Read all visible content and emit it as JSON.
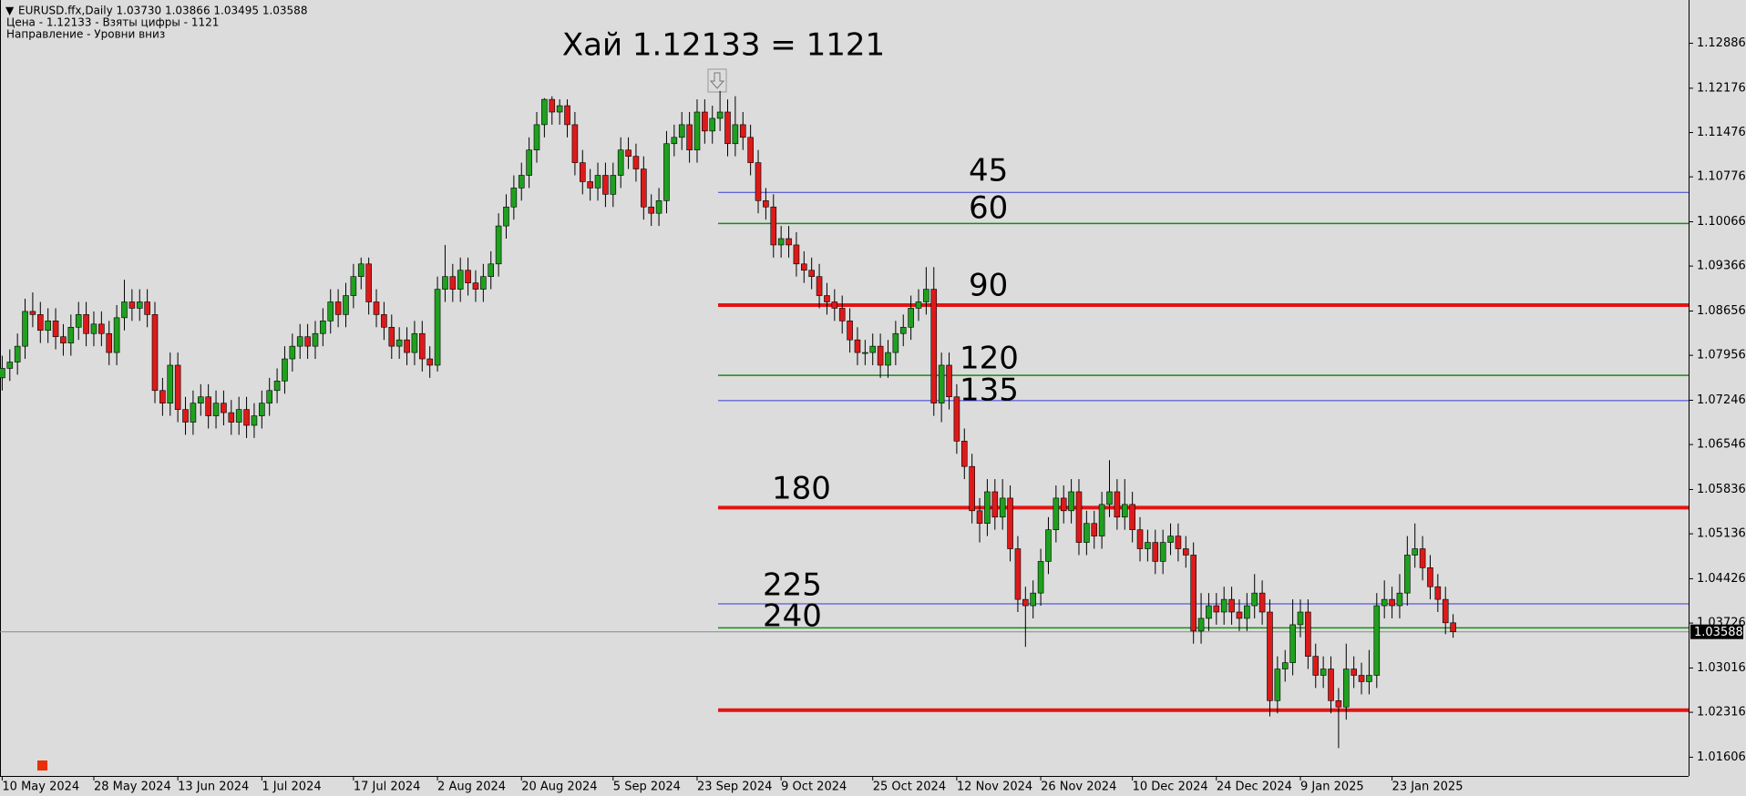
{
  "chart_data": {
    "type": "candlestick",
    "title": "Хай 1.12133 = 1121",
    "info_lines": [
      "EURUSD.ffx,Daily  1.03730 1.03866 1.03495 1.03588",
      "Цена - 1.12133 - Взяты цифры - 1121",
      "Направление - Уровни вниз"
    ],
    "up_color": "#1fa01f",
    "down_color": "#dd1a1a",
    "ylim": [
      1.0131,
      1.1357
    ],
    "yticks": [
      1.12886,
      1.12176,
      1.11476,
      1.10776,
      1.10066,
      1.09366,
      1.08656,
      1.07956,
      1.07246,
      1.06546,
      1.05836,
      1.05136,
      1.04426,
      1.03726,
      1.03016,
      1.02316,
      1.01606
    ],
    "levels": [
      {
        "name": "45",
        "value": 1.1053,
        "color": "#3a3ad8",
        "width": 1
      },
      {
        "name": "60",
        "value": 1.1004,
        "color": "#1a8a1a",
        "width": 1.5
      },
      {
        "name": "90",
        "value": 1.0875,
        "color": "#e41414",
        "width": 4
      },
      {
        "name": "120",
        "value": 1.0764,
        "color": "#1a8a1a",
        "width": 1.5
      },
      {
        "name": "135",
        "value": 1.0724,
        "color": "#3a3ad8",
        "width": 1
      },
      {
        "name": "180",
        "value": 1.0555,
        "color": "#e41414",
        "width": 4
      },
      {
        "name": "225",
        "value": 1.0403,
        "color": "#3a3ad8",
        "width": 1
      },
      {
        "name": "240",
        "value": 1.0365,
        "color": "#1a8a1a",
        "width": 1.5
      },
      {
        "value": 1.0235,
        "color": "#e41414",
        "width": 4
      }
    ],
    "categories": [
      "10 May 2024",
      null,
      null,
      null,
      null,
      null,
      null,
      null,
      null,
      null,
      null,
      null,
      "28 May 2024",
      null,
      null,
      null,
      null,
      null,
      null,
      null,
      null,
      null,
      null,
      "13 Jun 2024",
      null,
      null,
      null,
      null,
      null,
      null,
      null,
      null,
      null,
      null,
      "1 Jul 2024",
      null,
      null,
      null,
      null,
      null,
      null,
      null,
      null,
      null,
      null,
      null,
      "17 Jul 2024",
      null,
      null,
      null,
      null,
      null,
      null,
      null,
      null,
      null,
      null,
      "2 Aug 2024",
      null,
      null,
      null,
      null,
      null,
      null,
      null,
      null,
      null,
      null,
      "20 Aug 2024",
      null,
      null,
      null,
      null,
      null,
      null,
      null,
      null,
      null,
      null,
      null,
      "5 Sep 2024",
      null,
      null,
      null,
      null,
      null,
      null,
      null,
      null,
      null,
      null,
      "23 Sep 2024",
      null,
      null,
      null,
      null,
      null,
      null,
      null,
      null,
      null,
      null,
      "9 Oct 2024",
      null,
      null,
      null,
      null,
      null,
      null,
      null,
      null,
      null,
      null,
      null,
      "25 Oct 2024",
      null,
      null,
      null,
      null,
      null,
      null,
      null,
      null,
      null,
      null,
      "12 Nov 2024",
      null,
      null,
      null,
      null,
      null,
      null,
      null,
      null,
      null,
      null,
      "26 Nov 2024",
      null,
      null,
      null,
      null,
      null,
      null,
      null,
      null,
      null,
      null,
      null,
      "10 Dec 2024",
      null,
      null,
      null,
      null,
      null,
      null,
      null,
      null,
      null,
      null,
      "24 Dec 2024",
      null,
      null,
      null,
      null,
      null,
      null,
      null,
      null,
      null,
      null,
      "9 Jan 2025",
      null,
      null,
      null,
      null,
      null,
      null,
      null,
      null,
      null,
      null,
      null,
      "23 Jan 2025",
      null,
      null,
      null,
      null,
      null,
      null,
      null,
      null
    ],
    "candles": [
      [
        1.076,
        1.0795,
        1.074,
        1.0775
      ],
      [
        1.0775,
        1.0805,
        1.0755,
        1.0785
      ],
      [
        1.0785,
        1.083,
        1.0765,
        1.081
      ],
      [
        1.081,
        1.0885,
        1.079,
        1.0865
      ],
      [
        1.0865,
        1.0895,
        1.084,
        1.086
      ],
      [
        1.086,
        1.088,
        1.0815,
        1.0835
      ],
      [
        1.0835,
        1.087,
        1.0815,
        1.085
      ],
      [
        1.085,
        1.087,
        1.0805,
        1.0825
      ],
      [
        1.0825,
        1.0845,
        1.0795,
        1.0815
      ],
      [
        1.0815,
        1.086,
        1.0795,
        1.084
      ],
      [
        1.084,
        1.088,
        1.082,
        1.086
      ],
      [
        1.086,
        1.088,
        1.081,
        1.083
      ],
      [
        1.083,
        1.0865,
        1.081,
        1.0845
      ],
      [
        1.0845,
        1.0865,
        1.081,
        1.083
      ],
      [
        1.083,
        1.085,
        1.078,
        1.08
      ],
      [
        1.08,
        1.0875,
        1.078,
        1.0855
      ],
      [
        1.0855,
        1.0915,
        1.0835,
        1.088
      ],
      [
        1.088,
        1.09,
        1.085,
        1.087
      ],
      [
        1.087,
        1.09,
        1.085,
        1.088
      ],
      [
        1.088,
        1.09,
        1.084,
        1.086
      ],
      [
        1.086,
        1.088,
        1.072,
        1.074
      ],
      [
        1.074,
        1.076,
        1.07,
        1.072
      ],
      [
        1.072,
        1.08,
        1.07,
        1.078
      ],
      [
        1.078,
        1.08,
        1.069,
        1.071
      ],
      [
        1.071,
        1.073,
        1.067,
        1.069
      ],
      [
        1.069,
        1.074,
        1.067,
        1.072
      ],
      [
        1.072,
        1.075,
        1.07,
        1.073
      ],
      [
        1.073,
        1.075,
        1.068,
        1.07
      ],
      [
        1.07,
        1.074,
        1.068,
        1.072
      ],
      [
        1.072,
        1.074,
        1.0685,
        1.0705
      ],
      [
        1.0705,
        1.0725,
        1.067,
        1.069
      ],
      [
        1.069,
        1.073,
        1.067,
        1.071
      ],
      [
        1.071,
        1.073,
        1.0665,
        1.0685
      ],
      [
        1.0685,
        1.072,
        1.0665,
        1.07
      ],
      [
        1.07,
        1.074,
        1.068,
        1.072
      ],
      [
        1.072,
        1.076,
        1.07,
        1.074
      ],
      [
        1.074,
        1.0775,
        1.072,
        1.0755
      ],
      [
        1.0755,
        1.081,
        1.0735,
        1.079
      ],
      [
        1.079,
        1.083,
        1.077,
        1.081
      ],
      [
        1.081,
        1.0845,
        1.079,
        1.0825
      ],
      [
        1.0825,
        1.0845,
        1.079,
        1.081
      ],
      [
        1.081,
        1.085,
        1.079,
        1.083
      ],
      [
        1.083,
        1.087,
        1.081,
        1.085
      ],
      [
        1.085,
        1.09,
        1.083,
        1.088
      ],
      [
        1.088,
        1.09,
        1.084,
        1.086
      ],
      [
        1.086,
        1.091,
        1.084,
        1.089
      ],
      [
        1.089,
        1.094,
        1.087,
        1.092
      ],
      [
        1.092,
        1.095,
        1.09,
        1.094
      ],
      [
        1.094,
        1.095,
        1.086,
        1.088
      ],
      [
        1.088,
        1.09,
        1.084,
        1.086
      ],
      [
        1.086,
        1.088,
        1.082,
        1.084
      ],
      [
        1.084,
        1.086,
        1.079,
        1.081
      ],
      [
        1.081,
        1.084,
        1.079,
        1.082
      ],
      [
        1.082,
        1.084,
        1.078,
        1.08
      ],
      [
        1.08,
        1.085,
        1.078,
        1.083
      ],
      [
        1.083,
        1.085,
        1.077,
        1.079
      ],
      [
        1.079,
        1.081,
        1.076,
        1.078
      ],
      [
        1.078,
        1.092,
        1.077,
        1.09
      ],
      [
        1.09,
        1.097,
        1.088,
        1.092
      ],
      [
        1.092,
        1.094,
        1.088,
        1.09
      ],
      [
        1.09,
        1.095,
        1.088,
        1.093
      ],
      [
        1.093,
        1.095,
        1.089,
        1.091
      ],
      [
        1.091,
        1.093,
        1.088,
        1.09
      ],
      [
        1.09,
        1.094,
        1.088,
        1.092
      ],
      [
        1.092,
        1.096,
        1.09,
        1.094
      ],
      [
        1.094,
        1.102,
        1.092,
        1.1
      ],
      [
        1.1,
        1.105,
        1.098,
        1.103
      ],
      [
        1.103,
        1.108,
        1.101,
        1.106
      ],
      [
        1.106,
        1.11,
        1.104,
        1.108
      ],
      [
        1.108,
        1.114,
        1.106,
        1.112
      ],
      [
        1.112,
        1.118,
        1.11,
        1.116
      ],
      [
        1.116,
        1.1202,
        1.114,
        1.12
      ],
      [
        1.12,
        1.1205,
        1.116,
        1.118
      ],
      [
        1.118,
        1.12,
        1.116,
        1.119
      ],
      [
        1.119,
        1.12,
        1.114,
        1.116
      ],
      [
        1.116,
        1.118,
        1.108,
        1.11
      ],
      [
        1.11,
        1.112,
        1.105,
        1.107
      ],
      [
        1.107,
        1.109,
        1.104,
        1.106
      ],
      [
        1.106,
        1.11,
        1.104,
        1.108
      ],
      [
        1.108,
        1.11,
        1.103,
        1.105
      ],
      [
        1.105,
        1.11,
        1.103,
        1.108
      ],
      [
        1.108,
        1.114,
        1.106,
        1.112
      ],
      [
        1.112,
        1.114,
        1.109,
        1.111
      ],
      [
        1.111,
        1.113,
        1.107,
        1.109
      ],
      [
        1.109,
        1.111,
        1.101,
        1.103
      ],
      [
        1.103,
        1.105,
        1.1,
        1.102
      ],
      [
        1.102,
        1.106,
        1.1,
        1.104
      ],
      [
        1.104,
        1.115,
        1.102,
        1.113
      ],
      [
        1.113,
        1.116,
        1.111,
        1.114
      ],
      [
        1.114,
        1.118,
        1.112,
        1.116
      ],
      [
        1.116,
        1.118,
        1.11,
        1.112
      ],
      [
        1.112,
        1.12,
        1.11,
        1.118
      ],
      [
        1.118,
        1.12,
        1.113,
        1.115
      ],
      [
        1.115,
        1.119,
        1.113,
        1.117
      ],
      [
        1.117,
        1.12133,
        1.115,
        1.118
      ],
      [
        1.118,
        1.12,
        1.111,
        1.113
      ],
      [
        1.113,
        1.1205,
        1.111,
        1.116
      ],
      [
        1.116,
        1.118,
        1.112,
        1.114
      ],
      [
        1.114,
        1.116,
        1.108,
        1.11
      ],
      [
        1.11,
        1.112,
        1.102,
        1.104
      ],
      [
        1.104,
        1.106,
        1.101,
        1.103
      ],
      [
        1.103,
        1.105,
        1.095,
        1.097
      ],
      [
        1.097,
        1.1,
        1.095,
        1.098
      ],
      [
        1.098,
        1.1,
        1.095,
        1.097
      ],
      [
        1.097,
        1.099,
        1.092,
        1.094
      ],
      [
        1.094,
        1.096,
        1.091,
        1.093
      ],
      [
        1.093,
        1.095,
        1.09,
        1.092
      ],
      [
        1.092,
        1.094,
        1.087,
        1.089
      ],
      [
        1.089,
        1.091,
        1.086,
        1.088
      ],
      [
        1.088,
        1.09,
        1.085,
        1.087
      ],
      [
        1.087,
        1.089,
        1.083,
        1.085
      ],
      [
        1.085,
        1.087,
        1.08,
        1.082
      ],
      [
        1.082,
        1.084,
        1.078,
        1.08
      ],
      [
        1.08,
        1.082,
        1.078,
        1.08
      ],
      [
        1.08,
        1.083,
        1.078,
        1.081
      ],
      [
        1.081,
        1.083,
        1.076,
        1.078
      ],
      [
        1.078,
        1.082,
        1.076,
        1.08
      ],
      [
        1.08,
        1.085,
        1.078,
        1.083
      ],
      [
        1.083,
        1.086,
        1.081,
        1.084
      ],
      [
        1.084,
        1.089,
        1.082,
        1.087
      ],
      [
        1.087,
        1.09,
        1.085,
        1.088
      ],
      [
        1.088,
        1.0935,
        1.086,
        1.09
      ],
      [
        1.09,
        1.0935,
        1.07,
        1.072
      ],
      [
        1.072,
        1.08,
        1.069,
        1.078
      ],
      [
        1.078,
        1.08,
        1.071,
        1.073
      ],
      [
        1.073,
        1.075,
        1.064,
        1.066
      ],
      [
        1.066,
        1.068,
        1.06,
        1.062
      ],
      [
        1.062,
        1.064,
        1.053,
        1.055
      ],
      [
        1.055,
        1.057,
        1.05,
        1.053
      ],
      [
        1.053,
        1.06,
        1.051,
        1.058
      ],
      [
        1.058,
        1.06,
        1.052,
        1.054
      ],
      [
        1.054,
        1.06,
        1.052,
        1.057
      ],
      [
        1.057,
        1.059,
        1.047,
        1.049
      ],
      [
        1.049,
        1.051,
        1.039,
        1.041
      ],
      [
        1.041,
        1.043,
        1.0335,
        1.04
      ],
      [
        1.04,
        1.044,
        1.038,
        1.042
      ],
      [
        1.042,
        1.049,
        1.04,
        1.047
      ],
      [
        1.047,
        1.054,
        1.045,
        1.052
      ],
      [
        1.052,
        1.059,
        1.05,
        1.057
      ],
      [
        1.057,
        1.059,
        1.053,
        1.055
      ],
      [
        1.055,
        1.06,
        1.053,
        1.058
      ],
      [
        1.058,
        1.06,
        1.048,
        1.05
      ],
      [
        1.05,
        1.055,
        1.048,
        1.053
      ],
      [
        1.053,
        1.055,
        1.049,
        1.051
      ],
      [
        1.051,
        1.058,
        1.049,
        1.056
      ],
      [
        1.056,
        1.063,
        1.054,
        1.058
      ],
      [
        1.058,
        1.06,
        1.052,
        1.054
      ],
      [
        1.054,
        1.06,
        1.052,
        1.056
      ],
      [
        1.056,
        1.058,
        1.05,
        1.052
      ],
      [
        1.052,
        1.054,
        1.047,
        1.049
      ],
      [
        1.049,
        1.052,
        1.047,
        1.05
      ],
      [
        1.05,
        1.052,
        1.045,
        1.047
      ],
      [
        1.047,
        1.052,
        1.045,
        1.05
      ],
      [
        1.05,
        1.053,
        1.048,
        1.051
      ],
      [
        1.051,
        1.053,
        1.047,
        1.049
      ],
      [
        1.049,
        1.051,
        1.046,
        1.048
      ],
      [
        1.048,
        1.05,
        1.034,
        1.036
      ],
      [
        1.036,
        1.042,
        1.034,
        1.038
      ],
      [
        1.038,
        1.042,
        1.036,
        1.04
      ],
      [
        1.04,
        1.042,
        1.037,
        1.039
      ],
      [
        1.039,
        1.043,
        1.037,
        1.041
      ],
      [
        1.041,
        1.043,
        1.037,
        1.039
      ],
      [
        1.039,
        1.041,
        1.036,
        1.038
      ],
      [
        1.038,
        1.042,
        1.036,
        1.04
      ],
      [
        1.04,
        1.045,
        1.038,
        1.042
      ],
      [
        1.042,
        1.044,
        1.037,
        1.039
      ],
      [
        1.039,
        1.041,
        1.0225,
        1.025
      ],
      [
        1.025,
        1.032,
        1.023,
        1.03
      ],
      [
        1.03,
        1.033,
        1.028,
        1.031
      ],
      [
        1.031,
        1.041,
        1.029,
        1.037
      ],
      [
        1.037,
        1.041,
        1.035,
        1.039
      ],
      [
        1.039,
        1.041,
        1.03,
        1.032
      ],
      [
        1.032,
        1.034,
        1.027,
        1.029
      ],
      [
        1.029,
        1.032,
        1.027,
        1.03
      ],
      [
        1.03,
        1.032,
        1.023,
        1.025
      ],
      [
        1.025,
        1.027,
        1.0175,
        1.024
      ],
      [
        1.024,
        1.034,
        1.022,
        1.03
      ],
      [
        1.03,
        1.032,
        1.027,
        1.029
      ],
      [
        1.029,
        1.031,
        1.026,
        1.028
      ],
      [
        1.028,
        1.033,
        1.026,
        1.029
      ],
      [
        1.029,
        1.042,
        1.027,
        1.04
      ],
      [
        1.04,
        1.044,
        1.038,
        1.041
      ],
      [
        1.041,
        1.043,
        1.038,
        1.04
      ],
      [
        1.04,
        1.045,
        1.038,
        1.042
      ],
      [
        1.042,
        1.051,
        1.04,
        1.048
      ],
      [
        1.048,
        1.053,
        1.046,
        1.049
      ],
      [
        1.049,
        1.051,
        1.044,
        1.046
      ],
      [
        1.046,
        1.048,
        1.041,
        1.043
      ],
      [
        1.043,
        1.045,
        1.039,
        1.041
      ],
      [
        1.041,
        1.043,
        1.0355,
        1.0373
      ],
      [
        1.0373,
        1.03866,
        1.03495,
        1.03588
      ]
    ]
  }
}
